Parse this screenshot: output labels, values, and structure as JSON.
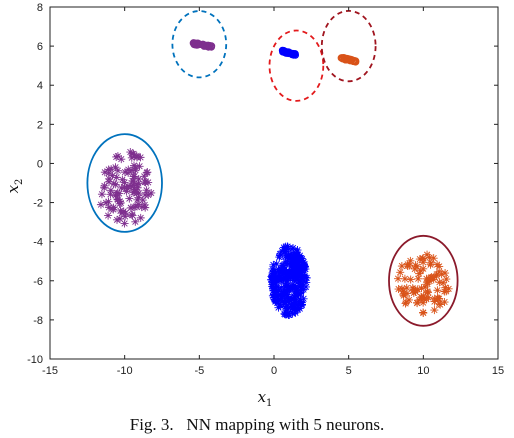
{
  "chart_data": {
    "type": "scatter",
    "title": "",
    "xlabel": "x",
    "xlabel_sub": "1",
    "ylabel": "x",
    "ylabel_sub": "2",
    "xlim": [
      -15,
      15
    ],
    "ylim": [
      -10,
      8
    ],
    "xticks": [
      -15,
      -10,
      -5,
      0,
      5,
      10,
      15
    ],
    "yticks": [
      -10,
      -8,
      -6,
      -4,
      -2,
      0,
      2,
      4,
      6,
      8
    ],
    "grid": false,
    "legend": "none",
    "clusters": [
      {
        "center": [
          -10,
          -1.2
        ],
        "spread": [
          1.8,
          2.0
        ],
        "count": 110,
        "marker": "star",
        "color": "#7E2F8E",
        "ellipse": {
          "cx": -10,
          "cy": -1,
          "rx": 2.5,
          "ry": 2.5,
          "color": "#0072BD",
          "dashed": false
        }
      },
      {
        "center": [
          1.0,
          -6.0
        ],
        "spread": [
          1.2,
          1.8
        ],
        "count": 320,
        "marker": "star",
        "color": "#0000FF",
        "ellipse": null
      },
      {
        "center": [
          10,
          -6.2
        ],
        "spread": [
          1.8,
          1.6
        ],
        "count": 90,
        "marker": "star",
        "color": "#D95319",
        "ellipse": {
          "cx": 10,
          "cy": -6,
          "rx": 2.3,
          "ry": 2.3,
          "color": "#8B1A2B",
          "dashed": false
        }
      },
      {
        "center": [
          -4.8,
          6.05
        ],
        "spread": [
          1.3,
          0.12
        ],
        "count": 40,
        "marker": "circle",
        "color": "#7E2F8E",
        "ellipse": {
          "cx": -5.0,
          "cy": 6.1,
          "rx": 1.8,
          "ry": 1.7,
          "color": "#0072BD",
          "dashed": true
        }
      },
      {
        "center": [
          1.0,
          5.65
        ],
        "spread": [
          0.9,
          0.12
        ],
        "count": 40,
        "marker": "circle",
        "color": "#0000FF",
        "ellipse": {
          "cx": 1.5,
          "cy": 5.0,
          "rx": 1.8,
          "ry": 1.8,
          "color": "#E31A1C",
          "dashed": true
        }
      },
      {
        "center": [
          5.0,
          5.3
        ],
        "spread": [
          1.0,
          0.1
        ],
        "count": 40,
        "marker": "circle",
        "color": "#D95319",
        "ellipse": {
          "cx": 5.0,
          "cy": 6.0,
          "rx": 1.8,
          "ry": 1.8,
          "color": "#A0141E",
          "dashed": true
        }
      }
    ]
  },
  "caption": "Fig. 3.   NN mapping with 5 neurons."
}
